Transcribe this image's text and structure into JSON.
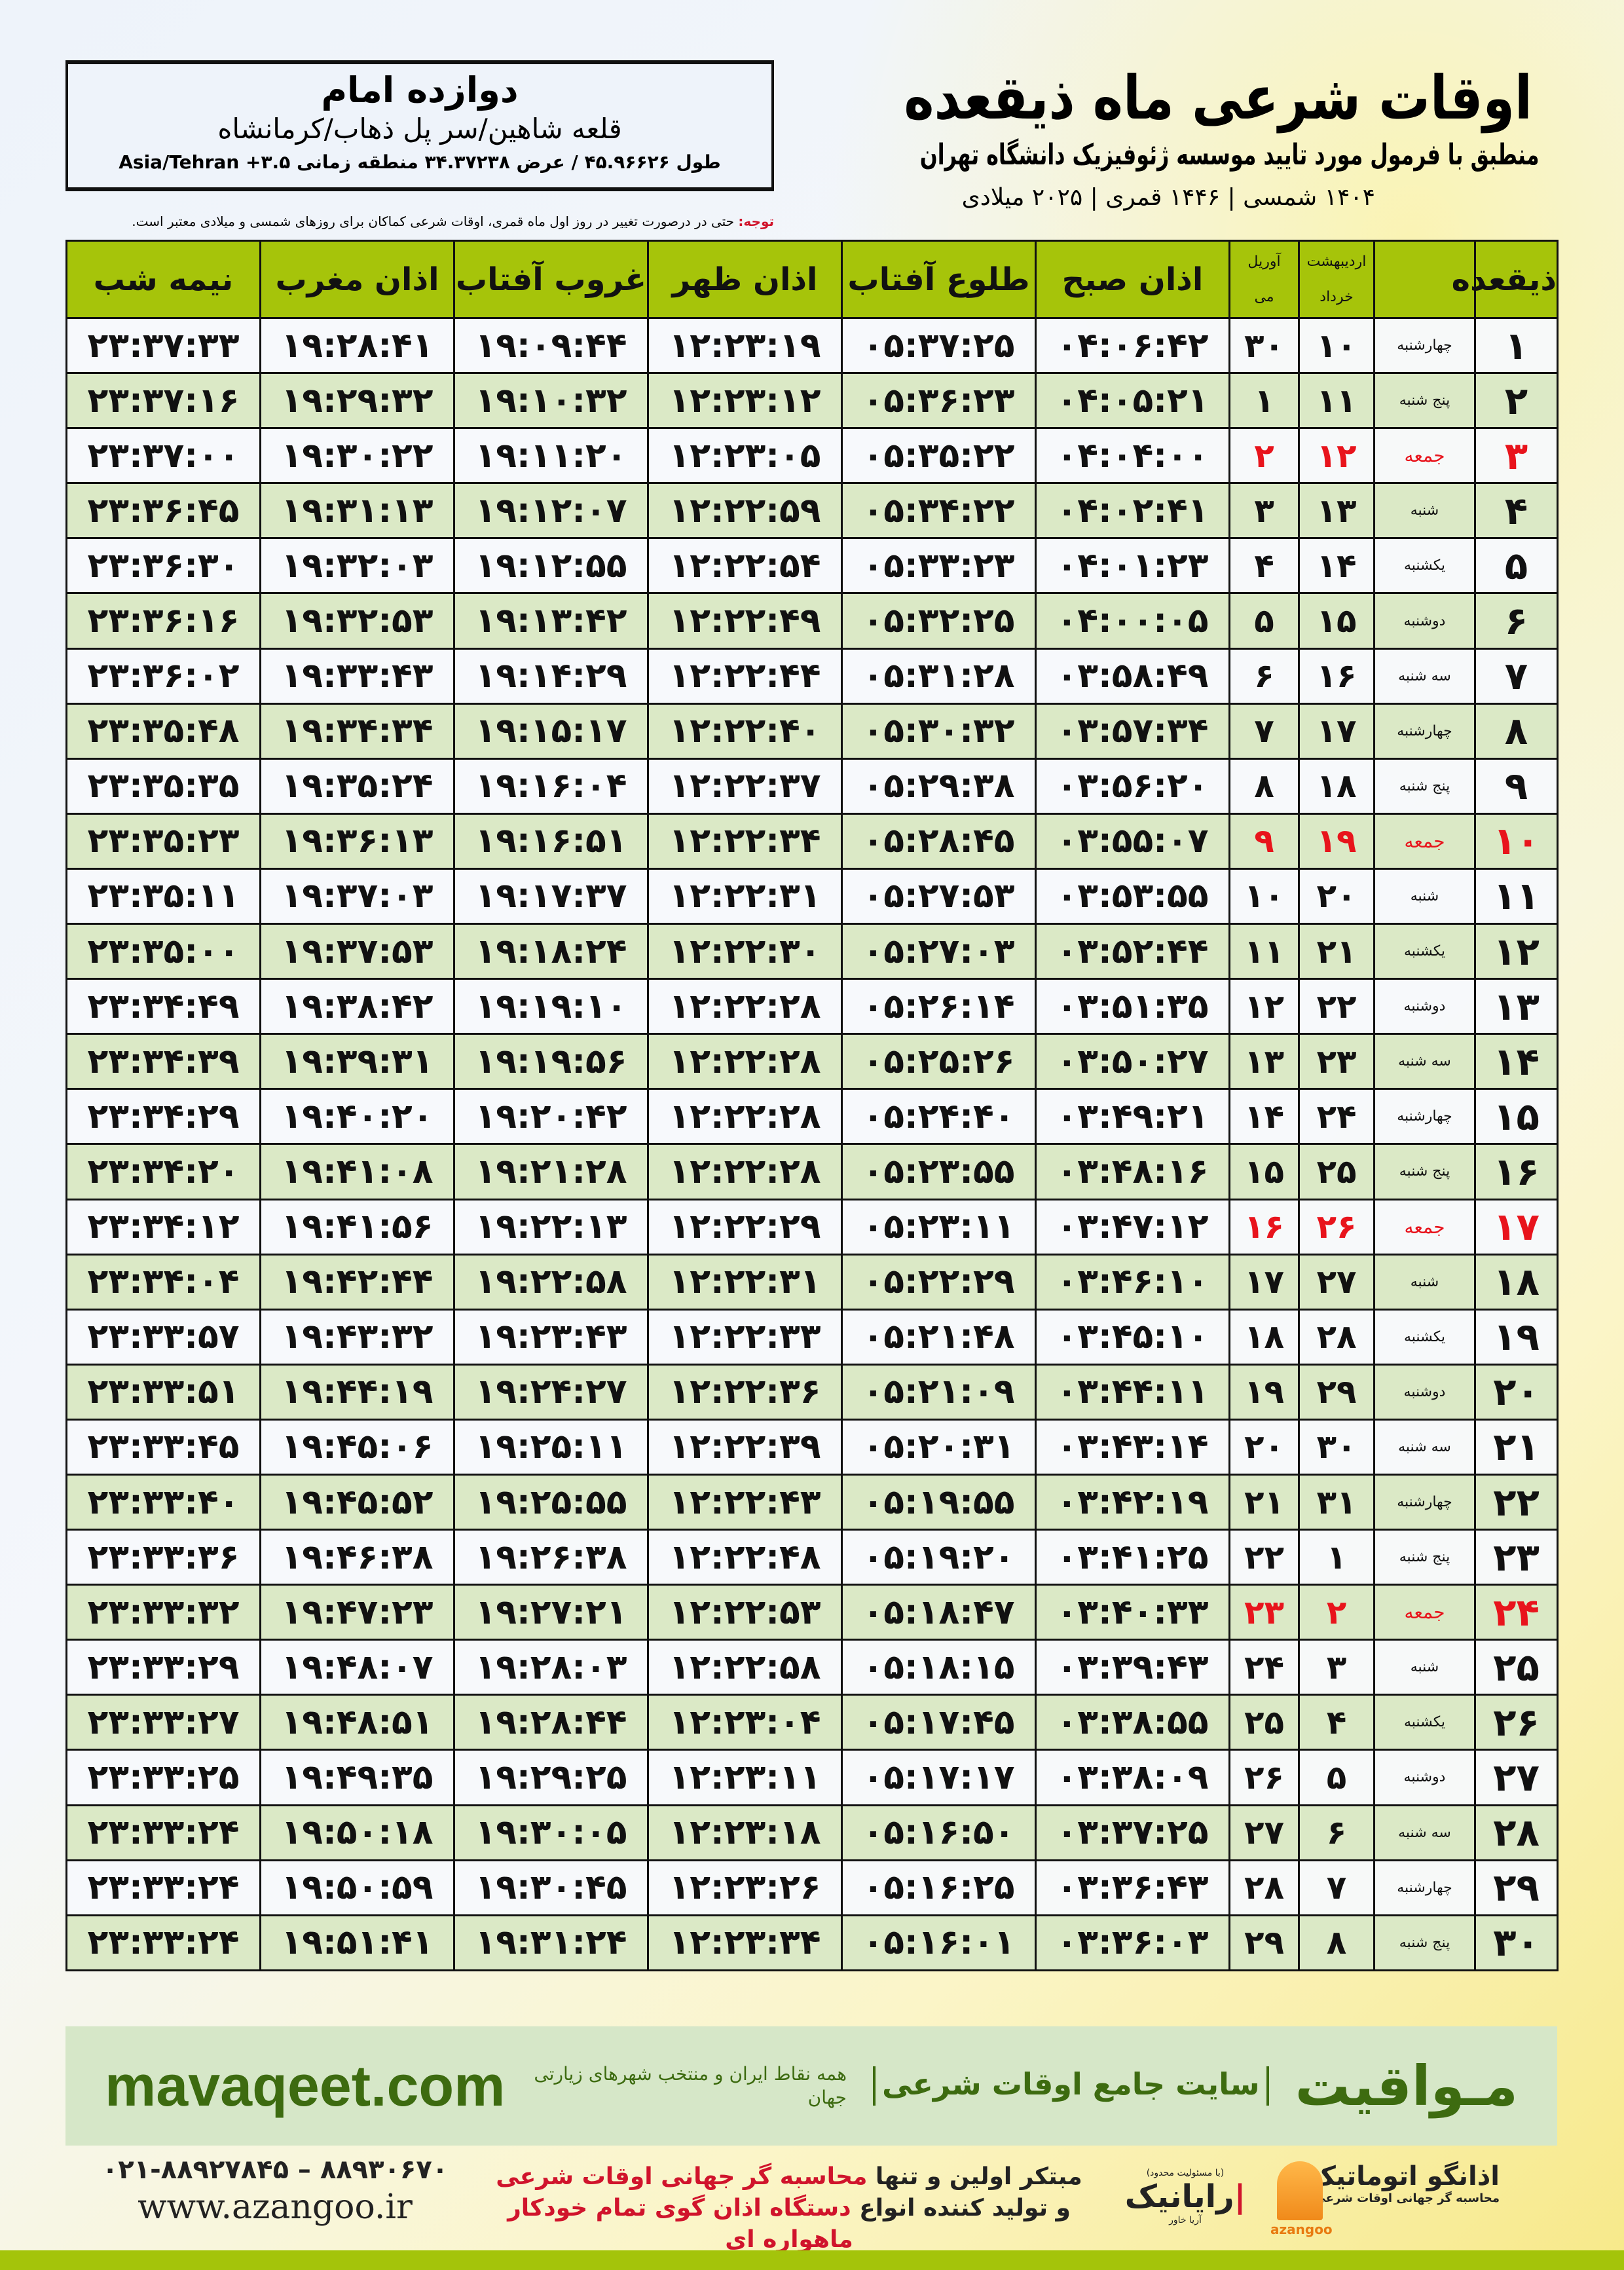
{
  "header": {
    "title": "اوقات شرعی ماه ذیقعده",
    "subtitle": "منطبق با فرمول مورد تایید موسسه ژئوفیزیک دانشگاه تهران",
    "years": "۱۴۰۴ شمسی | ۱۴۴۶ قمری | ۲۰۲۵ میلادی",
    "location_name": "دوازده امام",
    "location_path": "قلعه شاهین/سر پل ذهاب/کرمانشاه",
    "coords": "طول ۴۵.۹۶۶۲۶ / عرض ۳۴.۳۷۲۳۸ منطقه زمانی ۳.۵+ Asia/Tehran",
    "note_label": "توجه:",
    "note": " حتی در درصورت تغییر در روز اول ماه قمری، اوقات شرعی کماکان برای روزهای شمسی و میلادی معتبر است."
  },
  "table": {
    "headers": {
      "day": "ذیقعده",
      "shamsi_top": "اردیبهشت",
      "shamsi_bottom": "خرداد",
      "greg_top": "آوریل",
      "greg_bottom": "می",
      "fajr": "اذان صبح",
      "sunrise": "طلوع آفتاب",
      "dhuhr": "اذان ظهر",
      "sunset": "غروب آفتاب",
      "maghrib": "اذان مغرب",
      "midnight": "نیمه شب"
    },
    "friday_color": "#e8141c",
    "header_color": "#a6c40a",
    "rows": [
      [
        "۱",
        "چهارشنبه",
        "۱۰",
        "۳۰",
        "۰۴:۰۶:۴۲",
        "۰۵:۳۷:۲۵",
        "۱۲:۲۳:۱۹",
        "۱۹:۰۹:۴۴",
        "۱۹:۲۸:۴۱",
        "۲۳:۳۷:۳۳"
      ],
      [
        "۲",
        "پنج شنبه",
        "۱۱",
        "۱",
        "۰۴:۰۵:۲۱",
        "۰۵:۳۶:۲۳",
        "۱۲:۲۳:۱۲",
        "۱۹:۱۰:۳۲",
        "۱۹:۲۹:۳۲",
        "۲۳:۳۷:۱۶"
      ],
      [
        "۳",
        "جمعه",
        "۱۲",
        "۲",
        "۰۴:۰۴:۰۰",
        "۰۵:۳۵:۲۲",
        "۱۲:۲۳:۰۵",
        "۱۹:۱۱:۲۰",
        "۱۹:۳۰:۲۲",
        "۲۳:۳۷:۰۰"
      ],
      [
        "۴",
        "شنبه",
        "۱۳",
        "۳",
        "۰۴:۰۲:۴۱",
        "۰۵:۳۴:۲۲",
        "۱۲:۲۲:۵۹",
        "۱۹:۱۲:۰۷",
        "۱۹:۳۱:۱۳",
        "۲۳:۳۶:۴۵"
      ],
      [
        "۵",
        "یکشنبه",
        "۱۴",
        "۴",
        "۰۴:۰۱:۲۳",
        "۰۵:۳۳:۲۳",
        "۱۲:۲۲:۵۴",
        "۱۹:۱۲:۵۵",
        "۱۹:۳۲:۰۳",
        "۲۳:۳۶:۳۰"
      ],
      [
        "۶",
        "دوشنبه",
        "۱۵",
        "۵",
        "۰۴:۰۰:۰۵",
        "۰۵:۳۲:۲۵",
        "۱۲:۲۲:۴۹",
        "۱۹:۱۳:۴۲",
        "۱۹:۳۲:۵۳",
        "۲۳:۳۶:۱۶"
      ],
      [
        "۷",
        "سه شنبه",
        "۱۶",
        "۶",
        "۰۳:۵۸:۴۹",
        "۰۵:۳۱:۲۸",
        "۱۲:۲۲:۴۴",
        "۱۹:۱۴:۲۹",
        "۱۹:۳۳:۴۳",
        "۲۳:۳۶:۰۲"
      ],
      [
        "۸",
        "چهارشنبه",
        "۱۷",
        "۷",
        "۰۳:۵۷:۳۴",
        "۰۵:۳۰:۳۲",
        "۱۲:۲۲:۴۰",
        "۱۹:۱۵:۱۷",
        "۱۹:۳۴:۳۴",
        "۲۳:۳۵:۴۸"
      ],
      [
        "۹",
        "پنج شنبه",
        "۱۸",
        "۸",
        "۰۳:۵۶:۲۰",
        "۰۵:۲۹:۳۸",
        "۱۲:۲۲:۳۷",
        "۱۹:۱۶:۰۴",
        "۱۹:۳۵:۲۴",
        "۲۳:۳۵:۳۵"
      ],
      [
        "۱۰",
        "جمعه",
        "۱۹",
        "۹",
        "۰۳:۵۵:۰۷",
        "۰۵:۲۸:۴۵",
        "۱۲:۲۲:۳۴",
        "۱۹:۱۶:۵۱",
        "۱۹:۳۶:۱۳",
        "۲۳:۳۵:۲۳"
      ],
      [
        "۱۱",
        "شنبه",
        "۲۰",
        "۱۰",
        "۰۳:۵۳:۵۵",
        "۰۵:۲۷:۵۳",
        "۱۲:۲۲:۳۱",
        "۱۹:۱۷:۳۷",
        "۱۹:۳۷:۰۳",
        "۲۳:۳۵:۱۱"
      ],
      [
        "۱۲",
        "یکشنبه",
        "۲۱",
        "۱۱",
        "۰۳:۵۲:۴۴",
        "۰۵:۲۷:۰۳",
        "۱۲:۲۲:۳۰",
        "۱۹:۱۸:۲۴",
        "۱۹:۳۷:۵۳",
        "۲۳:۳۵:۰۰"
      ],
      [
        "۱۳",
        "دوشنبه",
        "۲۲",
        "۱۲",
        "۰۳:۵۱:۳۵",
        "۰۵:۲۶:۱۴",
        "۱۲:۲۲:۲۸",
        "۱۹:۱۹:۱۰",
        "۱۹:۳۸:۴۲",
        "۲۳:۳۴:۴۹"
      ],
      [
        "۱۴",
        "سه شنبه",
        "۲۳",
        "۱۳",
        "۰۳:۵۰:۲۷",
        "۰۵:۲۵:۲۶",
        "۱۲:۲۲:۲۸",
        "۱۹:۱۹:۵۶",
        "۱۹:۳۹:۳۱",
        "۲۳:۳۴:۳۹"
      ],
      [
        "۱۵",
        "چهارشنبه",
        "۲۴",
        "۱۴",
        "۰۳:۴۹:۲۱",
        "۰۵:۲۴:۴۰",
        "۱۲:۲۲:۲۸",
        "۱۹:۲۰:۴۲",
        "۱۹:۴۰:۲۰",
        "۲۳:۳۴:۲۹"
      ],
      [
        "۱۶",
        "پنج شنبه",
        "۲۵",
        "۱۵",
        "۰۳:۴۸:۱۶",
        "۰۵:۲۳:۵۵",
        "۱۲:۲۲:۲۸",
        "۱۹:۲۱:۲۸",
        "۱۹:۴۱:۰۸",
        "۲۳:۳۴:۲۰"
      ],
      [
        "۱۷",
        "جمعه",
        "۲۶",
        "۱۶",
        "۰۳:۴۷:۱۲",
        "۰۵:۲۳:۱۱",
        "۱۲:۲۲:۲۹",
        "۱۹:۲۲:۱۳",
        "۱۹:۴۱:۵۶",
        "۲۳:۳۴:۱۲"
      ],
      [
        "۱۸",
        "شنبه",
        "۲۷",
        "۱۷",
        "۰۳:۴۶:۱۰",
        "۰۵:۲۲:۲۹",
        "۱۲:۲۲:۳۱",
        "۱۹:۲۲:۵۸",
        "۱۹:۴۲:۴۴",
        "۲۳:۳۴:۰۴"
      ],
      [
        "۱۹",
        "یکشنبه",
        "۲۸",
        "۱۸",
        "۰۳:۴۵:۱۰",
        "۰۵:۲۱:۴۸",
        "۱۲:۲۲:۳۳",
        "۱۹:۲۳:۴۳",
        "۱۹:۴۳:۳۲",
        "۲۳:۳۳:۵۷"
      ],
      [
        "۲۰",
        "دوشنبه",
        "۲۹",
        "۱۹",
        "۰۳:۴۴:۱۱",
        "۰۵:۲۱:۰۹",
        "۱۲:۲۲:۳۶",
        "۱۹:۲۴:۲۷",
        "۱۹:۴۴:۱۹",
        "۲۳:۳۳:۵۱"
      ],
      [
        "۲۱",
        "سه شنبه",
        "۳۰",
        "۲۰",
        "۰۳:۴۳:۱۴",
        "۰۵:۲۰:۳۱",
        "۱۲:۲۲:۳۹",
        "۱۹:۲۵:۱۱",
        "۱۹:۴۵:۰۶",
        "۲۳:۳۳:۴۵"
      ],
      [
        "۲۲",
        "چهارشنبه",
        "۳۱",
        "۲۱",
        "۰۳:۴۲:۱۹",
        "۰۵:۱۹:۵۵",
        "۱۲:۲۲:۴۳",
        "۱۹:۲۵:۵۵",
        "۱۹:۴۵:۵۲",
        "۲۳:۳۳:۴۰"
      ],
      [
        "۲۳",
        "پنج شنبه",
        "۱",
        "۲۲",
        "۰۳:۴۱:۲۵",
        "۰۵:۱۹:۲۰",
        "۱۲:۲۲:۴۸",
        "۱۹:۲۶:۳۸",
        "۱۹:۴۶:۳۸",
        "۲۳:۳۳:۳۶"
      ],
      [
        "۲۴",
        "جمعه",
        "۲",
        "۲۳",
        "۰۳:۴۰:۳۳",
        "۰۵:۱۸:۴۷",
        "۱۲:۲۲:۵۳",
        "۱۹:۲۷:۲۱",
        "۱۹:۴۷:۲۳",
        "۲۳:۳۳:۳۲"
      ],
      [
        "۲۵",
        "شنبه",
        "۳",
        "۲۴",
        "۰۳:۳۹:۴۳",
        "۰۵:۱۸:۱۵",
        "۱۲:۲۲:۵۸",
        "۱۹:۲۸:۰۳",
        "۱۹:۴۸:۰۷",
        "۲۳:۳۳:۲۹"
      ],
      [
        "۲۶",
        "یکشنبه",
        "۴",
        "۲۵",
        "۰۳:۳۸:۵۵",
        "۰۵:۱۷:۴۵",
        "۱۲:۲۳:۰۴",
        "۱۹:۲۸:۴۴",
        "۱۹:۴۸:۵۱",
        "۲۳:۳۳:۲۷"
      ],
      [
        "۲۷",
        "دوشنبه",
        "۵",
        "۲۶",
        "۰۳:۳۸:۰۹",
        "۰۵:۱۷:۱۷",
        "۱۲:۲۳:۱۱",
        "۱۹:۲۹:۲۵",
        "۱۹:۴۹:۳۵",
        "۲۳:۳۳:۲۵"
      ],
      [
        "۲۸",
        "سه شنبه",
        "۶",
        "۲۷",
        "۰۳:۳۷:۲۵",
        "۰۵:۱۶:۵۰",
        "۱۲:۲۳:۱۸",
        "۱۹:۳۰:۰۵",
        "۱۹:۵۰:۱۸",
        "۲۳:۳۳:۲۴"
      ],
      [
        "۲۹",
        "چهارشنبه",
        "۷",
        "۲۸",
        "۰۳:۳۶:۴۳",
        "۰۵:۱۶:۲۵",
        "۱۲:۲۳:۲۶",
        "۱۹:۳۰:۴۵",
        "۱۹:۵۰:۵۹",
        "۲۳:۳۳:۲۴"
      ],
      [
        "۳۰",
        "پنج شنبه",
        "۸",
        "۲۹",
        "۰۳:۳۶:۰۳",
        "۰۵:۱۶:۰۱",
        "۱۲:۲۳:۳۴",
        "۱۹:۳۱:۲۴",
        "۱۹:۵۱:۴۱",
        "۲۳:۳۳:۲۴"
      ]
    ]
  },
  "banner": {
    "brand": "مـواقیت",
    "slogan": "سایت جامع اوقات شرعی",
    "slogan2": "همه نقاط ایران و منتخب شهرهای زیارتی جهان",
    "site": "mavaqeet.com",
    "color": "#3d6b10"
  },
  "footer": {
    "phone": "۰۲۱-۸۸۹۲۷۸۴۵ – ۸۸۹۳۰۶۷۰",
    "url": "www.azangoo.ir",
    "promo1_a": "مبتکر اولین و تنها ",
    "promo1_b": "محاسبه گر جهانی اوقات شرعی",
    "promo2_a": "و تولید کننده انواع ",
    "promo2_b": "دستگاه اذان گوی تمام خودکار ماهواره ای",
    "logo_rayanik_cap": "(با مسئولیت محدود)",
    "logo_rayanik": "رایانیک",
    "logo_rayanik_sub": "آریا خاور",
    "logo_azangoo": "اذانگو اتوماتیک",
    "logo_azangoo_cap": "محاسبه گر جهانی اوقات شرعی",
    "logo_azangoo_latin": "azangoo"
  }
}
